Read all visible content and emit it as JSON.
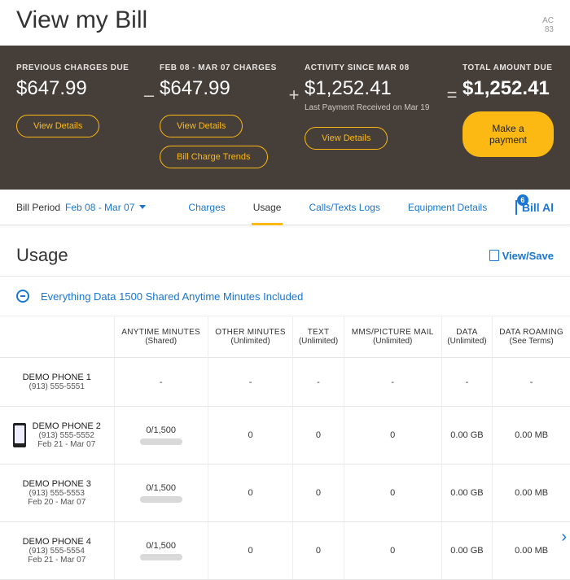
{
  "colors": {
    "primary_blue": "#1976d2",
    "accent_yellow": "#fdb913",
    "summary_bg": "#453e39"
  },
  "header": {
    "page_title": "View my Bill",
    "account_label": "AC",
    "account_partial": "83"
  },
  "summary": {
    "previous": {
      "label": "PREVIOUS CHARGES DUE",
      "amount": "$647.99",
      "view_details": "View Details"
    },
    "period": {
      "label": "FEB 08 - MAR 07 CHARGES",
      "amount": "$647.99",
      "view_details": "View Details",
      "trends": "Bill Charge Trends"
    },
    "activity": {
      "label": "ACTIVITY SINCE MAR 08",
      "amount": "$1,252.41",
      "note": "Last Payment Received on Mar 19",
      "view_details": "View Details"
    },
    "total": {
      "label": "TOTAL AMOUNT DUE",
      "amount": "$1,252.41",
      "pay_button": "Make a payment"
    }
  },
  "subnav": {
    "bill_period_label": "Bill Period",
    "bill_period_value": "Feb 08 - Mar 07",
    "tabs": {
      "charges": "Charges",
      "usage": "Usage",
      "calls": "Calls/Texts Logs",
      "equipment": "Equipment Details"
    },
    "bill_alert": {
      "badge": "6",
      "label": "Bill Al"
    }
  },
  "usage": {
    "section_title": "Usage",
    "view_save": "View/Save",
    "plan_name": "Everything Data 1500 Shared Anytime Minutes Included",
    "columns": {
      "c1": {
        "top": "ANYTIME MINUTES",
        "sub": "(Shared)"
      },
      "c2": {
        "top": "OTHER MINUTES",
        "sub": "(Unlimited)"
      },
      "c3": {
        "top": "TEXT",
        "sub": "(Unlimited)"
      },
      "c4": {
        "top": "MMS/PICTURE MAIL",
        "sub": "(Unlimited)"
      },
      "c5": {
        "top": "DATA",
        "sub": "(Unlimited)"
      },
      "c6": {
        "top": "DATA ROAMING",
        "sub": "(See Terms)"
      }
    },
    "rows": {
      "r1": {
        "name": "DEMO PHONE 1",
        "number": "(913) 555-5551",
        "dates": "",
        "icon": false,
        "v1": "-",
        "v2": "-",
        "v3": "-",
        "v4": "-",
        "v5": "-",
        "v6": "-",
        "progress": false
      },
      "r2": {
        "name": "DEMO PHONE 2",
        "number": "(913) 555-5552",
        "dates": "Feb 21 - Mar 07",
        "icon": true,
        "v1": "0/1,500",
        "v2": "0",
        "v3": "0",
        "v4": "0",
        "v5": "0.00 GB",
        "v6": "0.00 MB",
        "progress": true
      },
      "r3": {
        "name": "DEMO PHONE 3",
        "number": "(913) 555-5553",
        "dates": "Feb 20 - Mar 07",
        "icon": false,
        "v1": "0/1,500",
        "v2": "0",
        "v3": "0",
        "v4": "0",
        "v5": "0.00 GB",
        "v6": "0.00 MB",
        "progress": true
      },
      "r4": {
        "name": "DEMO PHONE 4",
        "number": "(913) 555-5554",
        "dates": "Feb 21 - Mar 07",
        "icon": false,
        "v1": "0/1,500",
        "v2": "0",
        "v3": "0",
        "v4": "0",
        "v5": "0.00 GB",
        "v6": "0.00 MB",
        "progress": true
      }
    }
  }
}
